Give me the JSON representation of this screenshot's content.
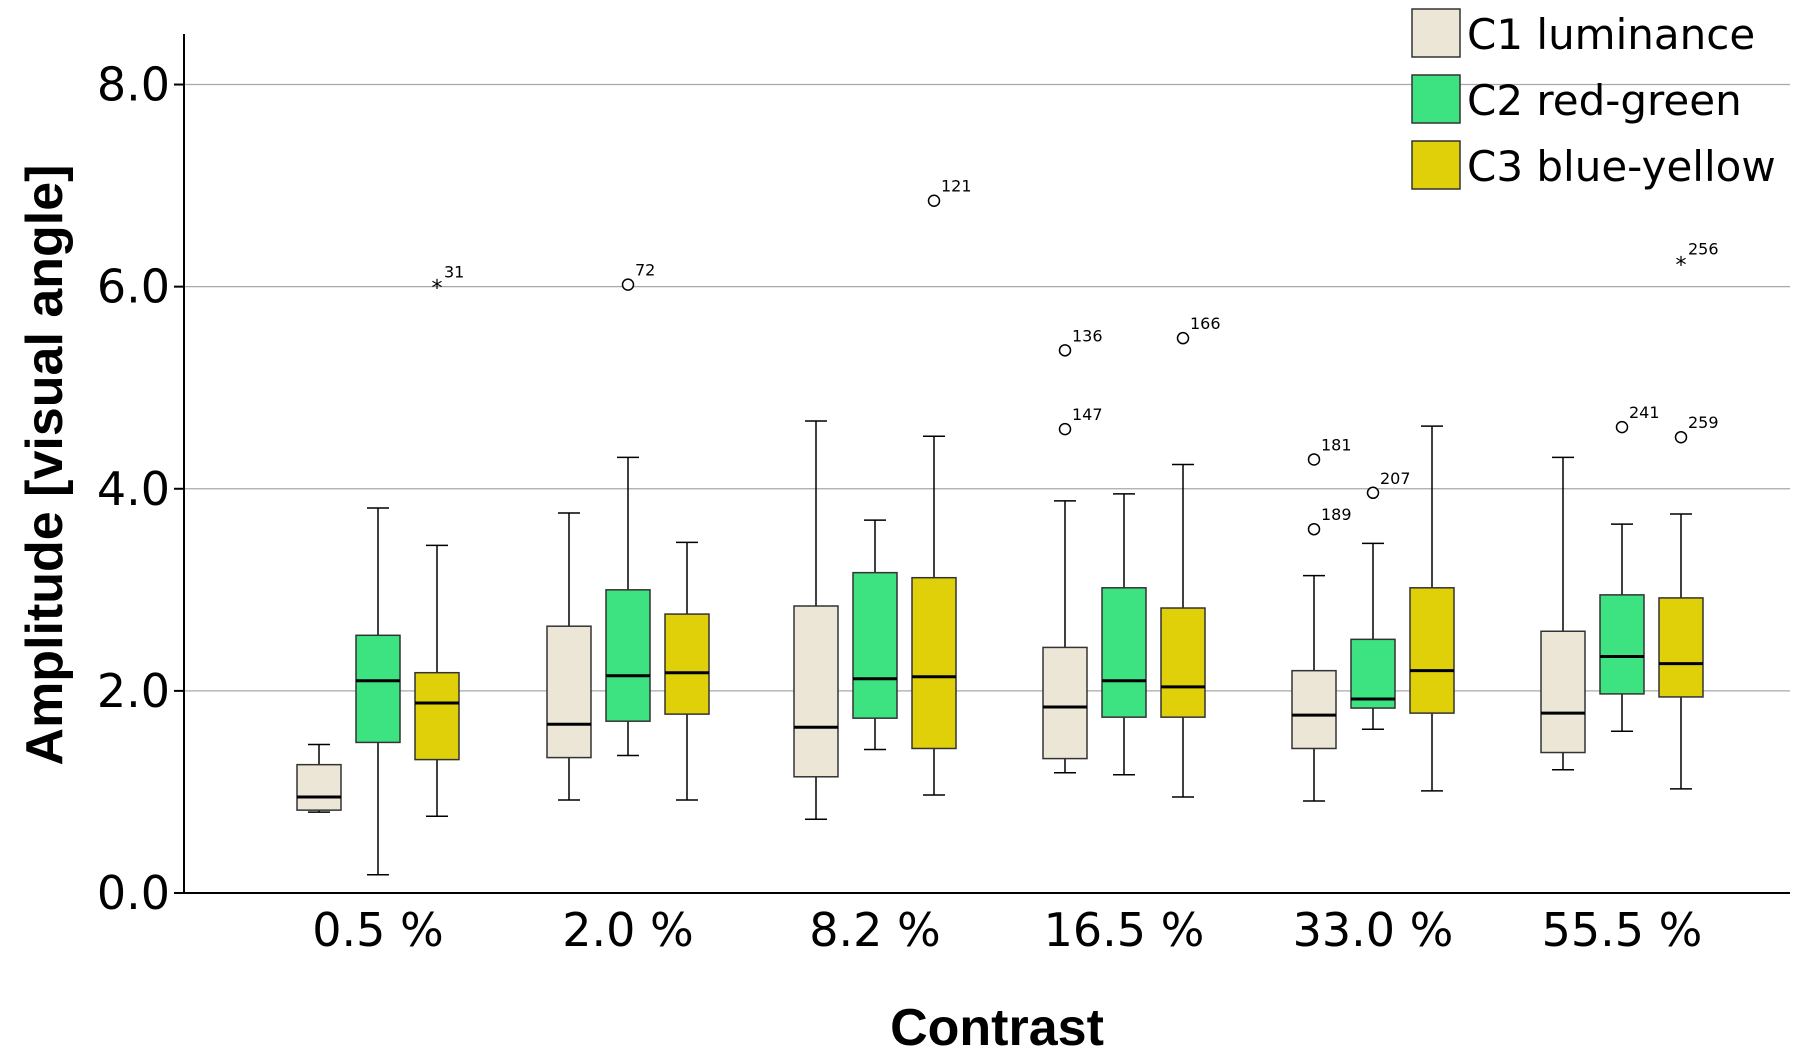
{
  "chart_data": {
    "type": "boxplot",
    "xlabel": "Contrast",
    "ylabel": "Amplitude [visual angle]",
    "ylim": [
      0,
      8.5
    ],
    "yticks": [
      "0.0",
      "2.0",
      "4.0",
      "6.0",
      "8.0"
    ],
    "ytick_values": [
      0,
      2,
      4,
      6,
      8
    ],
    "grid": "horizontal",
    "legend_position": "top-right",
    "categories": [
      "0.5 %",
      "2.0 %",
      "8.2 %",
      "16.5 %",
      "33.0 %",
      "55.5 %"
    ],
    "series": [
      {
        "name": "C1 luminance",
        "color": "#ece6d6",
        "boxes": [
          {
            "whisker_low": 0.8,
            "q1": 0.82,
            "median": 0.95,
            "q3": 1.27,
            "whisker_high": 1.47,
            "outliers": []
          },
          {
            "whisker_low": 0.92,
            "q1": 1.34,
            "median": 1.67,
            "q3": 2.64,
            "whisker_high": 3.76,
            "outliers": []
          },
          {
            "whisker_low": 0.73,
            "q1": 1.15,
            "median": 1.64,
            "q3": 2.84,
            "whisker_high": 4.67,
            "outliers": []
          },
          {
            "whisker_low": 1.19,
            "q1": 1.33,
            "median": 1.84,
            "q3": 2.43,
            "whisker_high": 3.88,
            "outliers": [
              {
                "value": 5.37,
                "label": "136",
                "marker": "circle"
              },
              {
                "value": 4.59,
                "label": "147",
                "marker": "circle"
              }
            ]
          },
          {
            "whisker_low": 0.91,
            "q1": 1.43,
            "median": 1.76,
            "q3": 2.2,
            "whisker_high": 3.14,
            "outliers": [
              {
                "value": 4.29,
                "label": "181",
                "marker": "circle"
              },
              {
                "value": 3.6,
                "label": "189",
                "marker": "circle"
              }
            ]
          },
          {
            "whisker_low": 1.22,
            "q1": 1.39,
            "median": 1.78,
            "q3": 2.59,
            "whisker_high": 4.31,
            "outliers": []
          }
        ]
      },
      {
        "name": "C2 red-green",
        "color": "#3de281",
        "boxes": [
          {
            "whisker_low": 0.18,
            "q1": 1.49,
            "median": 2.1,
            "q3": 2.55,
            "whisker_high": 3.81,
            "outliers": []
          },
          {
            "whisker_low": 1.36,
            "q1": 1.7,
            "median": 2.15,
            "q3": 3.0,
            "whisker_high": 4.31,
            "outliers": [
              {
                "value": 6.02,
                "label": "72",
                "marker": "circle"
              }
            ]
          },
          {
            "whisker_low": 1.42,
            "q1": 1.73,
            "median": 2.12,
            "q3": 3.17,
            "whisker_high": 3.69,
            "outliers": []
          },
          {
            "whisker_low": 1.17,
            "q1": 1.74,
            "median": 2.1,
            "q3": 3.02,
            "whisker_high": 3.95,
            "outliers": []
          },
          {
            "whisker_low": 1.62,
            "q1": 1.83,
            "median": 1.92,
            "q3": 2.51,
            "whisker_high": 3.46,
            "outliers": [
              {
                "value": 3.96,
                "label": "207",
                "marker": "circle"
              }
            ]
          },
          {
            "whisker_low": 1.6,
            "q1": 1.97,
            "median": 2.34,
            "q3": 2.95,
            "whisker_high": 3.65,
            "outliers": [
              {
                "value": 4.61,
                "label": "241",
                "marker": "circle"
              }
            ]
          }
        ]
      },
      {
        "name": "C3 blue-yellow",
        "color": "#e0d00a",
        "boxes": [
          {
            "whisker_low": 0.76,
            "q1": 1.32,
            "median": 1.88,
            "q3": 2.18,
            "whisker_high": 3.44,
            "outliers": [
              {
                "value": 6.0,
                "label": "31",
                "marker": "star"
              }
            ]
          },
          {
            "whisker_low": 0.92,
            "q1": 1.77,
            "median": 2.18,
            "q3": 2.76,
            "whisker_high": 3.47,
            "outliers": []
          },
          {
            "whisker_low": 0.97,
            "q1": 1.43,
            "median": 2.14,
            "q3": 3.12,
            "whisker_high": 4.52,
            "outliers": [
              {
                "value": 6.85,
                "label": "121",
                "marker": "circle"
              }
            ]
          },
          {
            "whisker_low": 0.95,
            "q1": 1.74,
            "median": 2.04,
            "q3": 2.82,
            "whisker_high": 4.24,
            "outliers": [
              {
                "value": 5.49,
                "label": "166",
                "marker": "circle"
              }
            ]
          },
          {
            "whisker_low": 1.01,
            "q1": 1.78,
            "median": 2.2,
            "q3": 3.02,
            "whisker_high": 4.62,
            "outliers": []
          },
          {
            "whisker_low": 1.03,
            "q1": 1.94,
            "median": 2.27,
            "q3": 2.92,
            "whisker_high": 3.75,
            "outliers": [
              {
                "value": 6.23,
                "label": "256",
                "marker": "star"
              },
              {
                "value": 4.51,
                "label": "259",
                "marker": "circle"
              }
            ]
          }
        ]
      }
    ]
  }
}
